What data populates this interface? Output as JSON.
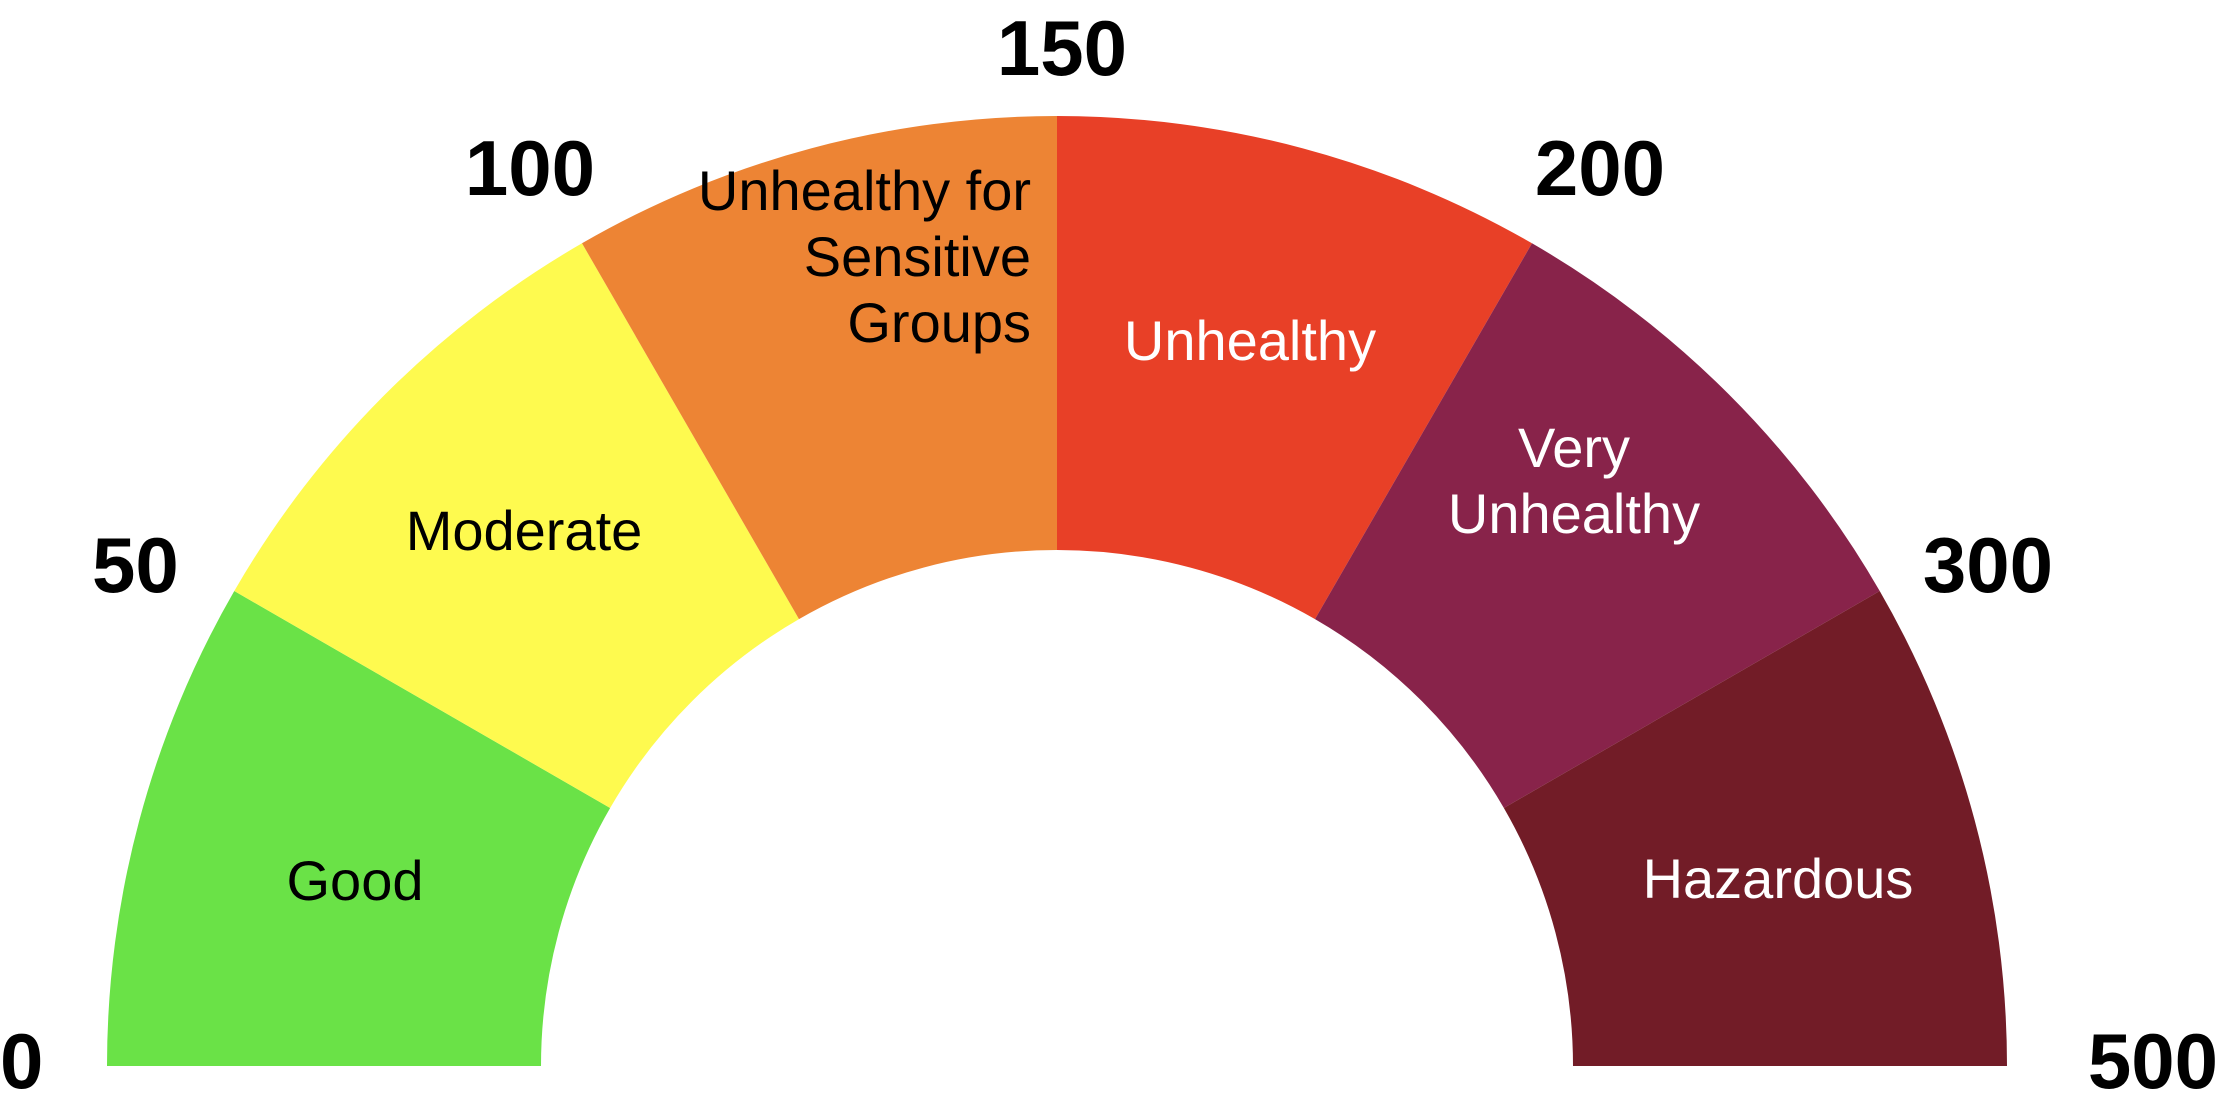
{
  "chart_data": {
    "type": "gauge",
    "segments": [
      {
        "label": "Good",
        "from": 0,
        "to": 50,
        "color": "#6ae247",
        "text_color": "#000000"
      },
      {
        "label": "Moderate",
        "from": 50,
        "to": 100,
        "color": "#fefa4f",
        "text_color": "#000000"
      },
      {
        "label": "Unhealthy for Sensitive Groups",
        "from": 100,
        "to": 150,
        "color": "#ed8434",
        "text_color": "#000000"
      },
      {
        "label": "Unhealthy",
        "from": 150,
        "to": 200,
        "color": "#e84027",
        "text_color": "#ffffff"
      },
      {
        "label": "Very Unhealthy",
        "from": 200,
        "to": 300,
        "color": "#88234a",
        "text_color": "#ffffff"
      },
      {
        "label": "Hazardous",
        "from": 300,
        "to": 500,
        "color": "#721c27",
        "text_color": "#ffffff"
      }
    ],
    "ticks": [
      "0",
      "50",
      "100",
      "150",
      "200",
      "300",
      "500"
    ]
  }
}
